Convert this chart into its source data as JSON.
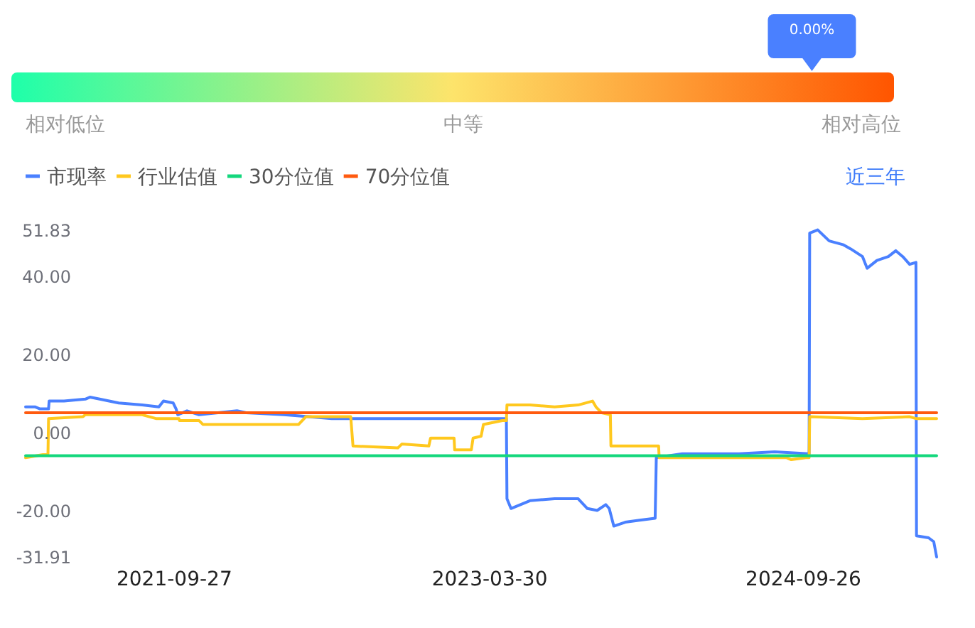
{
  "chart_data": [
    {
      "type": "other",
      "categories": [
        "相对低位",
        "中等",
        "相对高位"
      ],
      "colors": [
        "#1effaa",
        "#fde46b",
        "#ff5500"
      ],
      "annotations": [
        "0.00%"
      ]
    },
    {
      "type": "line",
      "legend": "top left",
      "annotations": [
        "近三年"
      ],
      "xlim": [
        "2021-01-11",
        "2025-05-16"
      ],
      "xticks": [
        "2021-09-27",
        "2023-03-30",
        "2024-09-26"
      ],
      "ylim": [
        -31.91,
        51.83
      ],
      "yticks": [
        51.83,
        {
          "value": 40,
          "label": "40.00"
        },
        {
          "value": 20,
          "label": "20.00"
        },
        {
          "value": 0,
          "label": "0.00"
        },
        {
          "value": -20,
          "label": "-20.00"
        },
        -31.91
      ],
      "series": [
        {
          "name": "市现率",
          "color": "#4a80ff",
          "x": [
            "2021-01-11",
            "2021-01-28",
            "2021-02-05",
            "2021-02-20",
            "2021-02-21",
            "2021-03-19",
            "2021-04-25",
            "2021-05-03",
            "2021-05-20",
            "2021-06-22",
            "2021-08-02",
            "2021-08-31",
            "2021-09-08",
            "2021-09-25",
            "2021-09-30",
            "2021-10-03",
            "2021-10-19",
            "2021-11-09",
            "2022-01-14",
            "2022-01-30",
            "2022-04-06",
            "2022-05-18",
            "2022-06-28",
            "2022-08-08",
            "2022-12-10",
            "2023-03-02",
            "2023-04-28",
            "2023-04-29",
            "2023-05-06",
            "2023-06-08",
            "2023-07-21",
            "2023-08-31",
            "2023-09-16",
            "2023-10-03",
            "2023-10-18",
            "2023-10-24",
            "2023-11-01",
            "2023-11-21",
            "2023-12-16",
            "2024-01-12",
            "2024-01-14",
            "2024-02-28",
            "2024-04-18",
            "2024-06-06",
            "2024-08-07",
            "2024-10-06",
            "2024-10-07",
            "2024-10-21",
            "2024-11-10",
            "2024-12-05",
            "2024-12-17",
            "2025-01-07",
            "2025-01-15",
            "2025-02-01",
            "2025-02-21",
            "2025-03-06",
            "2025-03-18",
            "2025-03-30",
            "2025-04-10",
            "2025-04-11",
            "2025-05-02",
            "2025-05-11",
            "2025-05-16"
          ],
          "values": [
            6.5,
            6.5,
            6,
            6,
            8,
            8,
            8.5,
            9,
            8.5,
            7.5,
            7,
            6.5,
            8,
            7.5,
            6,
            4.5,
            5.5,
            4.5,
            5.5,
            5,
            4.5,
            4,
            3.5,
            3.5,
            3.5,
            3.5,
            3.5,
            -17,
            -19.5,
            -17.5,
            -17,
            -17,
            -19.5,
            -20,
            -18.5,
            -19.5,
            -24,
            -23,
            -22.5,
            -22,
            -6.5,
            -5.5,
            -5.5,
            -5.5,
            -5,
            -5.5,
            51,
            51.83,
            49,
            48,
            47,
            45,
            42,
            44,
            45,
            46.5,
            45,
            43,
            43.5,
            -26.5,
            -27,
            -28,
            -31.91
          ]
        },
        {
          "name": "行业估值",
          "color": "#ffc81e",
          "x": [
            "2021-01-11",
            "2021-02-19",
            "2021-02-20",
            "2021-04-21",
            "2021-04-25",
            "2021-08-02",
            "2021-08-27",
            "2021-10-05",
            "2021-10-06",
            "2021-11-09",
            "2021-11-16",
            "2022-01-14",
            "2022-05-01",
            "2022-05-14",
            "2022-07-31",
            "2022-08-04",
            "2022-10-21",
            "2022-10-28",
            "2022-12-14",
            "2022-12-17",
            "2023-01-27",
            "2023-01-28",
            "2023-02-26",
            "2023-03-01",
            "2023-03-15",
            "2023-03-19",
            "2023-04-21",
            "2023-04-28",
            "2023-04-29",
            "2023-06-08",
            "2023-07-21",
            "2023-08-31",
            "2023-09-25",
            "2023-10-01",
            "2023-10-11",
            "2023-10-26",
            "2023-10-27",
            "2024-01-18",
            "2024-01-19",
            "2024-02-12",
            "2024-05-05",
            "2024-07-09",
            "2024-08-28",
            "2024-09-05",
            "2024-09-30",
            "2024-10-06",
            "2024-10-07",
            "2025-01-07",
            "2025-03-30",
            "2025-04-11",
            "2025-05-16"
          ],
          "values": [
            -6.5,
            -5.5,
            3.5,
            4,
            4.5,
            4.5,
            3.5,
            3.5,
            3,
            3,
            2,
            2,
            2,
            4,
            4,
            -3.5,
            -4,
            -3,
            -3.5,
            -1.5,
            -1.5,
            -4.5,
            -4.5,
            -1.5,
            -1,
            2,
            3,
            3,
            7,
            7,
            6.5,
            7,
            8,
            6.5,
            5,
            4.5,
            -3.5,
            -3.5,
            -6.5,
            -6.5,
            -6.5,
            -6.5,
            -6.5,
            -7,
            -6.5,
            -6.5,
            4,
            3.5,
            4,
            3.5,
            3.5
          ]
        },
        {
          "name": "30分位值",
          "color": "#14d77d",
          "x": [
            "2021-01-11",
            "2025-05-16"
          ],
          "values": [
            -6,
            -6
          ]
        },
        {
          "name": "70分位值",
          "color": "#ff5a0f",
          "x": [
            "2021-01-11",
            "2025-05-16"
          ],
          "values": [
            5,
            5
          ]
        }
      ]
    }
  ]
}
